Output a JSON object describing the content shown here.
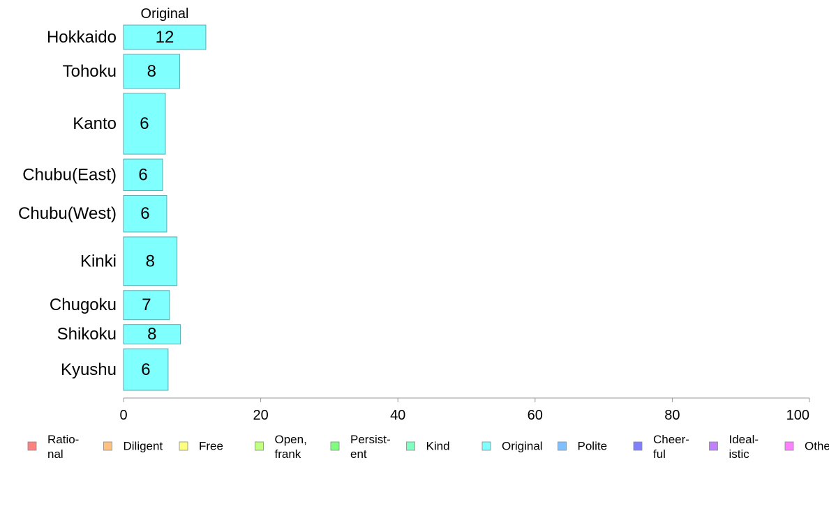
{
  "chart_data": {
    "type": "bar",
    "orientation": "horizontal",
    "series_label": "Original",
    "categories": [
      "Hokkaido",
      "Tohoku",
      "Kanto",
      "Chubu(East)",
      "Chubu(West)",
      "Kinki",
      "Chugoku",
      "Shikoku",
      "Kyushu"
    ],
    "values": [
      12,
      8,
      6,
      6,
      6,
      8,
      7,
      8,
      6
    ],
    "bar_widths": [
      12,
      8.2,
      6.1,
      5.7,
      6.3,
      7.8,
      6.7,
      8.3,
      6.5
    ],
    "category_weights": [
      1.0,
      1.4,
      2.5,
      1.3,
      1.5,
      2.0,
      1.2,
      0.8,
      1.7
    ],
    "xlim": [
      0,
      100
    ],
    "xticks": [
      0,
      20,
      40,
      60,
      80,
      100
    ],
    "xlabel": "",
    "ylabel": "",
    "title": "",
    "bar_color": "#80ffff",
    "bar_stroke": "#5aaab0",
    "axis_color": "#999999",
    "grid": false,
    "legend": {
      "placement": "bottom",
      "items": [
        {
          "lines": [
            "Ratio-",
            "nal"
          ],
          "color": "#ff8080"
        },
        {
          "lines": [
            "Diligent"
          ],
          "color": "#ffc080"
        },
        {
          "lines": [
            "Free"
          ],
          "color": "#ffff80"
        },
        {
          "lines": [
            "Open,",
            "frank"
          ],
          "color": "#c0ff80"
        },
        {
          "lines": [
            "Persist-",
            "ent"
          ],
          "color": "#80ff80"
        },
        {
          "lines": [
            "Kind"
          ],
          "color": "#80ffc0"
        },
        {
          "lines": [
            "Original"
          ],
          "color": "#80ffff"
        },
        {
          "lines": [
            "Polite"
          ],
          "color": "#80c0ff"
        },
        {
          "lines": [
            "Cheer-",
            "ful"
          ],
          "color": "#8080ff"
        },
        {
          "lines": [
            "Ideal-",
            "istic"
          ],
          "color": "#c080ff"
        },
        {
          "lines": [
            "Other"
          ],
          "color": "#ff80ff"
        }
      ]
    }
  }
}
